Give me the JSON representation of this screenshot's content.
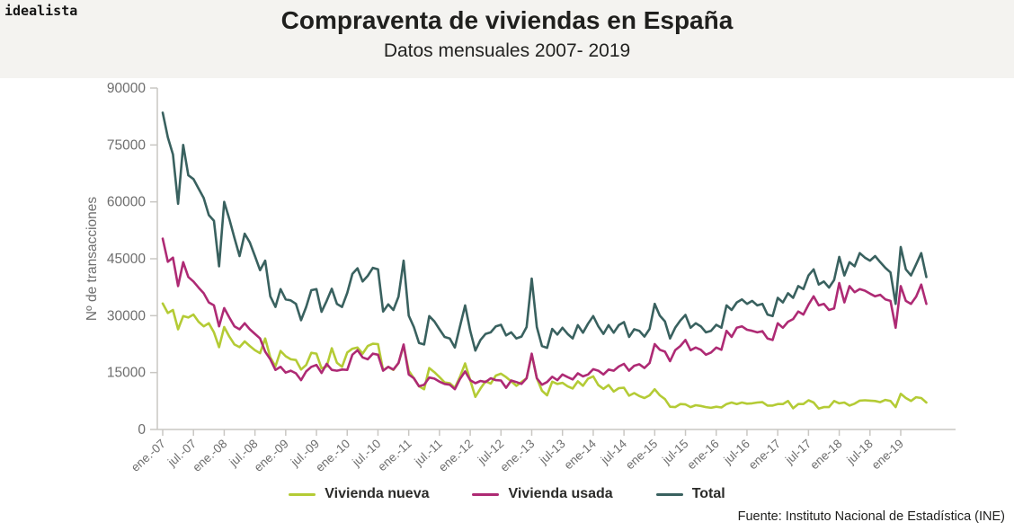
{
  "header": {
    "logo": "idealista",
    "title": "Compraventa de viviendas en España",
    "subtitle": "Datos mensuales 2007- 2019"
  },
  "footer": {
    "source": "Fuente: Instituto Nacional de Estadística (INE)"
  },
  "chart_data": {
    "type": "line",
    "title": "Compraventa de viviendas en España",
    "subtitle": "Datos mensuales 2007- 2019",
    "xlabel": "",
    "ylabel": "Nº de transacciones",
    "ylim": [
      0,
      90000
    ],
    "y_ticks": [
      0,
      15000,
      30000,
      45000,
      60000,
      75000,
      90000
    ],
    "grid": false,
    "legend_position": "bottom",
    "x_start_month": "ene-07",
    "x_end_month": "jun-19",
    "x_tick_labels": [
      "ene.-07",
      "jul.-07",
      "ene.-08",
      "jul.-08",
      "ene.-09",
      "jul.-09",
      "ene.-10",
      "jul.-10",
      "ene.-11",
      "jul.-11",
      "ene.-12",
      "jul-12",
      "ene.-13",
      "jul-13",
      "ene-14",
      "jul-14",
      "ene-15",
      "jul-15",
      "ene-16",
      "jul-16",
      "ene-17",
      "jul-17",
      "ene-18",
      "jul-18",
      "ene-19"
    ],
    "x_tick_month_indexes": [
      0,
      6,
      12,
      18,
      24,
      30,
      36,
      42,
      48,
      54,
      60,
      66,
      72,
      78,
      84,
      90,
      96,
      102,
      108,
      114,
      120,
      126,
      132,
      138,
      144
    ],
    "axis_color": "#c9c7c3",
    "tick_label_color": "#6e6e6e",
    "series": [
      {
        "name": "Vivienda nueva",
        "color": "#b4cb35",
        "values": [
          33200,
          30700,
          31500,
          26400,
          29900,
          29500,
          30300,
          28400,
          27200,
          28000,
          25600,
          21700,
          27000,
          24500,
          22400,
          21700,
          23200,
          22000,
          20900,
          20100,
          24000,
          19000,
          16600,
          20700,
          19300,
          18500,
          18300,
          15800,
          17000,
          20200,
          20000,
          16100,
          16600,
          21400,
          17600,
          16500,
          20300,
          21300,
          21600,
          20000,
          22000,
          22600,
          22500,
          15600,
          16500,
          15700,
          17500,
          22100,
          15500,
          13500,
          11400,
          10600,
          16200,
          15100,
          13800,
          12400,
          12200,
          11000,
          13900,
          17400,
          13000,
          8600,
          10800,
          12700,
          12100,
          14200,
          14700,
          13800,
          12700,
          11500,
          12500,
          13500,
          19800,
          13500,
          10200,
          9000,
          12600,
          12000,
          12300,
          11400,
          10800,
          12700,
          11500,
          13400,
          14000,
          11700,
          10700,
          11700,
          10000,
          10900,
          11000,
          8900,
          9600,
          8800,
          8300,
          9000,
          10600,
          9000,
          8000,
          6000,
          5900,
          6700,
          6600,
          5900,
          6400,
          6200,
          5900,
          5700,
          6000,
          5800,
          6700,
          7100,
          6700,
          7100,
          6800,
          6900,
          7100,
          7200,
          6300,
          6300,
          6700,
          6700,
          7500,
          5600,
          6700,
          6700,
          7700,
          7100,
          5500,
          5900,
          5900,
          7500,
          6900,
          7100,
          6300,
          6800,
          7600,
          7700,
          7600,
          7500,
          7200,
          7800,
          7500,
          5900,
          9400,
          8300,
          7500,
          8500,
          8300,
          7100
        ]
      },
      {
        "name": "Vivienda usada",
        "color": "#ae2a74",
        "values": [
          50300,
          44200,
          45300,
          37800,
          44100,
          40200,
          39000,
          37400,
          35900,
          33500,
          32700,
          27200,
          32000,
          29500,
          27200,
          26400,
          28000,
          26400,
          25200,
          24000,
          20500,
          18500,
          15700,
          16500,
          15000,
          15500,
          14800,
          13000,
          15300,
          16500,
          17000,
          14900,
          17300,
          15700,
          15500,
          15800,
          15700,
          19700,
          20900,
          19000,
          18500,
          20000,
          19700,
          15500,
          16500,
          15800,
          17500,
          22400,
          14500,
          13500,
          11400,
          11800,
          13700,
          13400,
          12600,
          12000,
          11800,
          10600,
          13300,
          15300,
          13000,
          12200,
          12800,
          12500,
          13500,
          13000,
          12900,
          11000,
          12900,
          12500,
          12000,
          13500,
          20000,
          13500,
          11800,
          12500,
          13900,
          13000,
          14500,
          13800,
          13200,
          14800,
          14000,
          14500,
          15900,
          15500,
          14500,
          15800,
          15500,
          16600,
          17300,
          15500,
          16800,
          17200,
          16200,
          17500,
          22500,
          21000,
          20500,
          18000,
          20900,
          22000,
          23600,
          20900,
          21600,
          21000,
          19700,
          20300,
          21600,
          21000,
          26000,
          24400,
          26800,
          27200,
          26300,
          26000,
          25600,
          25900,
          24000,
          23600,
          28000,
          26800,
          28400,
          29100,
          31100,
          30300,
          32900,
          35100,
          32700,
          33100,
          31500,
          31900,
          38600,
          33500,
          37800,
          36200,
          37000,
          36600,
          35800,
          35100,
          35500,
          34300,
          33900,
          26800,
          37800,
          33900,
          33100,
          35000,
          38200,
          33100
        ]
      },
      {
        "name": "Total",
        "color": "#39615f",
        "values": [
          83500,
          77000,
          72500,
          59500,
          75000,
          67000,
          66000,
          63500,
          61000,
          56500,
          55000,
          43000,
          60000,
          55500,
          50500,
          45700,
          51600,
          49300,
          45700,
          42000,
          44500,
          35100,
          32300,
          37000,
          34300,
          34000,
          33100,
          28800,
          32300,
          36700,
          37000,
          31000,
          33900,
          37100,
          33100,
          32300,
          36000,
          41000,
          42500,
          39000,
          40500,
          42600,
          42200,
          31100,
          33000,
          31500,
          35000,
          44500,
          30000,
          27000,
          22800,
          22400,
          29900,
          28500,
          26400,
          24400,
          24000,
          21600,
          27200,
          32700,
          26000,
          20800,
          23600,
          25200,
          25600,
          27200,
          27600,
          24800,
          25600,
          24000,
          24500,
          27000,
          39800,
          27000,
          22000,
          21500,
          26500,
          25000,
          26800,
          25200,
          24000,
          27500,
          25500,
          27900,
          29900,
          27200,
          25200,
          27500,
          25500,
          27500,
          28300,
          24400,
          26400,
          26000,
          24500,
          26500,
          33100,
          30000,
          28500,
          24000,
          26800,
          28700,
          30200,
          26800,
          28000,
          27200,
          25600,
          26000,
          27600,
          26800,
          32700,
          31500,
          33500,
          34300,
          33100,
          33900,
          32700,
          33100,
          30300,
          29900,
          34700,
          33500,
          35900,
          34700,
          37800,
          37000,
          40600,
          42200,
          38200,
          39000,
          37400,
          39400,
          45500,
          40600,
          44100,
          43000,
          46500,
          45300,
          44500,
          45700,
          44100,
          42600,
          41400,
          33100,
          48100,
          42200,
          40600,
          43500,
          46500,
          40200
        ]
      }
    ]
  }
}
